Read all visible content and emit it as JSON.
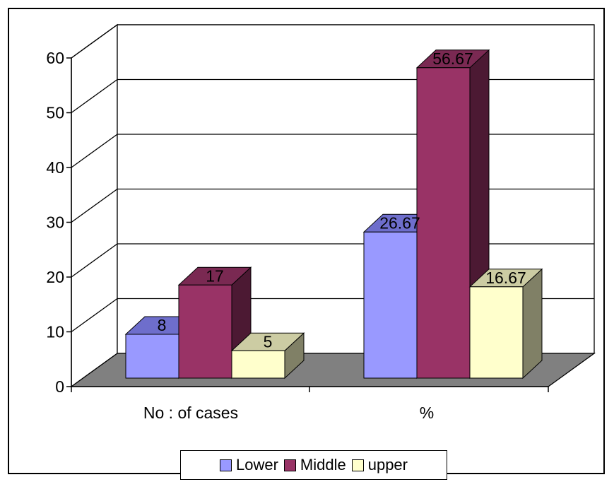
{
  "chart_data": {
    "type": "bar",
    "categories": [
      "No : of cases",
      "%"
    ],
    "series": [
      {
        "name": "Lower",
        "values": [
          8,
          26.67
        ],
        "labels": [
          "8",
          "26.67"
        ],
        "color": "#9999FF",
        "top_color": "#6E6ECC",
        "side_color": "#4D4D99"
      },
      {
        "name": "Middle",
        "values": [
          17,
          56.67
        ],
        "labels": [
          "17",
          "56.67"
        ],
        "color": "#993366",
        "top_color": "#7A2952",
        "side_color": "#4C1933"
      },
      {
        "name": "upper",
        "values": [
          5,
          16.67
        ],
        "labels": [
          "5",
          "16.67"
        ],
        "color": "#FFFFCC",
        "top_color": "#CCCCA3",
        "side_color": "#808066"
      }
    ],
    "yticks": [
      "0",
      "10",
      "20",
      "30",
      "40",
      "50",
      "60"
    ],
    "ylim": [
      0,
      60
    ],
    "grid": true,
    "legend_position": "bottom",
    "floor_color": "#808080"
  }
}
